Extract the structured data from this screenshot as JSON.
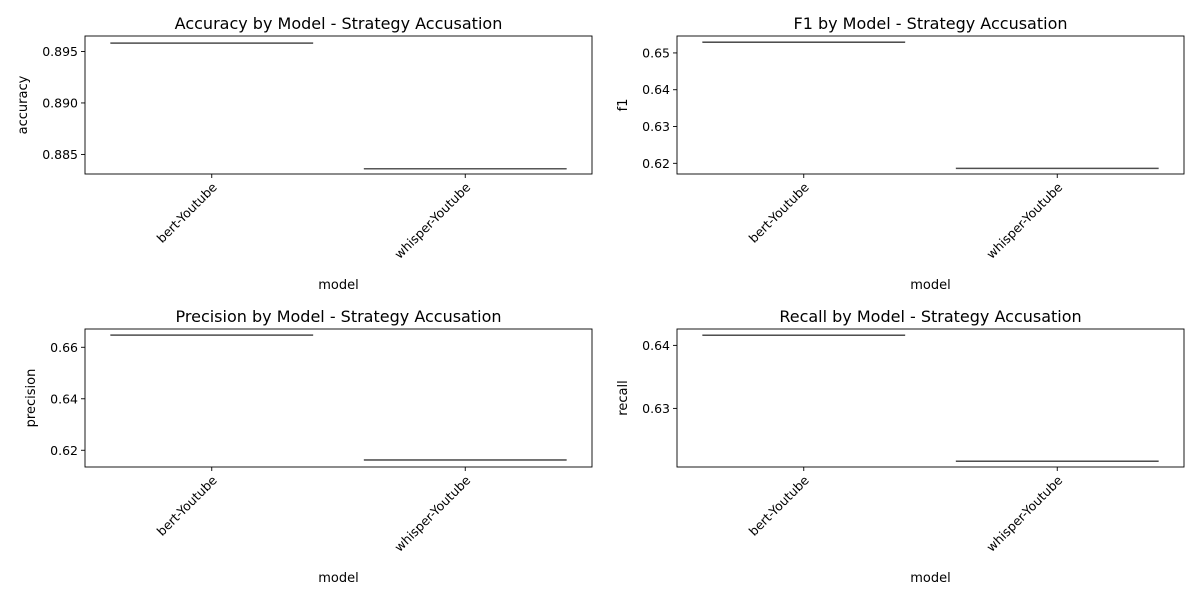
{
  "chart_data": [
    {
      "type": "box",
      "title": "Accuracy by Model - Strategy Accusation",
      "xlabel": "model",
      "ylabel": "accuracy",
      "categories": [
        "bert-Youtube",
        "whisper-Youtube"
      ],
      "values": [
        0.8958,
        0.8836
      ],
      "ylim": [
        0.8831,
        0.8965
      ],
      "yticks": [
        0.885,
        0.89,
        0.895
      ],
      "ytick_labels": [
        "0.885",
        "0.890",
        "0.895"
      ],
      "box_color": "#4f4f4f"
    },
    {
      "type": "box",
      "title": "F1 by Model - Strategy Accusation",
      "xlabel": "model",
      "ylabel": "f1",
      "categories": [
        "bert-Youtube",
        "whisper-Youtube"
      ],
      "values": [
        0.6529,
        0.6186
      ],
      "ylim": [
        0.6171,
        0.6546
      ],
      "yticks": [
        0.62,
        0.63,
        0.64,
        0.65
      ],
      "ytick_labels": [
        "0.62",
        "0.63",
        "0.64",
        "0.65"
      ],
      "box_color": "#4f4f4f"
    },
    {
      "type": "box",
      "title": "Precision by Model - Strategy Accusation",
      "xlabel": "model",
      "ylabel": "precision",
      "categories": [
        "bert-Youtube",
        "whisper-Youtube"
      ],
      "values": [
        0.6647,
        0.6162
      ],
      "ylim": [
        0.6135,
        0.6671
      ],
      "yticks": [
        0.62,
        0.64,
        0.66
      ],
      "ytick_labels": [
        "0.62",
        "0.64",
        "0.66"
      ],
      "box_color": "#4f4f4f"
    },
    {
      "type": "box",
      "title": "Recall by Model - Strategy Accusation",
      "xlabel": "model",
      "ylabel": "recall",
      "categories": [
        "bert-Youtube",
        "whisper-Youtube"
      ],
      "values": [
        0.6416,
        0.6216
      ],
      "ylim": [
        0.6207,
        0.6426
      ],
      "yticks": [
        0.63,
        0.64
      ],
      "ytick_labels": [
        "0.63",
        "0.64"
      ],
      "box_color": "#4f4f4f"
    }
  ]
}
